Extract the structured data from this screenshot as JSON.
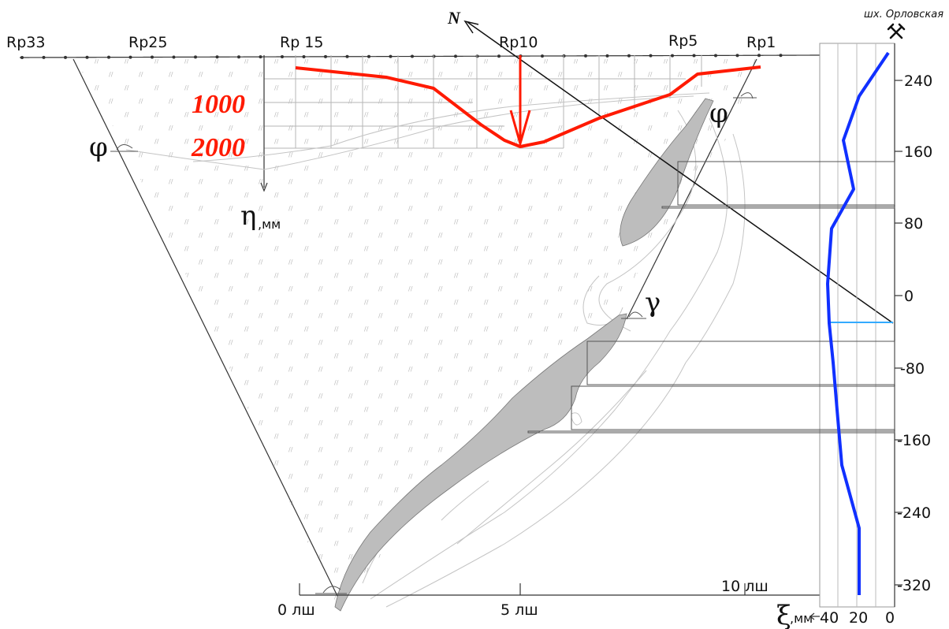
{
  "colors": {
    "subsidence": "#ff1a00",
    "profile": "#1030ff",
    "seam": "#bdbdbd",
    "grid": "#9a9a9a",
    "aquifer": "#33aaff"
  },
  "benchmarks": [
    "Rp33",
    "Rp25",
    "Rp 15",
    "Rp10",
    "Rp5",
    "Rp1"
  ],
  "north_label": "N",
  "mine_label": "шх. Орловская",
  "subsidence_scale": [
    "1000",
    "2000"
  ],
  "eta_label": "η",
  "eta_unit": ",мм",
  "angle_labels": {
    "phi_left": "φ",
    "phi_right": "φ",
    "gamma": "γ"
  },
  "bottom_axis": {
    "ticks": [
      "0 лш",
      "5 лш"
    ],
    "upper_tick": "10 лш"
  },
  "xi_label": "ξ",
  "xi_unit": ",мм",
  "xi_ticks": [
    "40",
    "20",
    "0"
  ],
  "depth_ticks": [
    "240",
    "160",
    "80",
    "0",
    "-80",
    "-160",
    "-240",
    "-320"
  ],
  "chart_data": {
    "type": "line",
    "subsidence_profile": {
      "x_ls": [
        -0.5,
        3.0,
        5.0,
        8.0,
        9.0
      ],
      "eta_mm": [
        0,
        450,
        2000,
        450,
        0
      ]
    },
    "horizontal_displacement_profile": {
      "depth": [
        270,
        225,
        175,
        120,
        80,
        20,
        -25,
        -80,
        -180,
        -260,
        -320
      ],
      "xi_mm": [
        2,
        16,
        22,
        16,
        26,
        30,
        29,
        27,
        24,
        18,
        19
      ]
    }
  }
}
